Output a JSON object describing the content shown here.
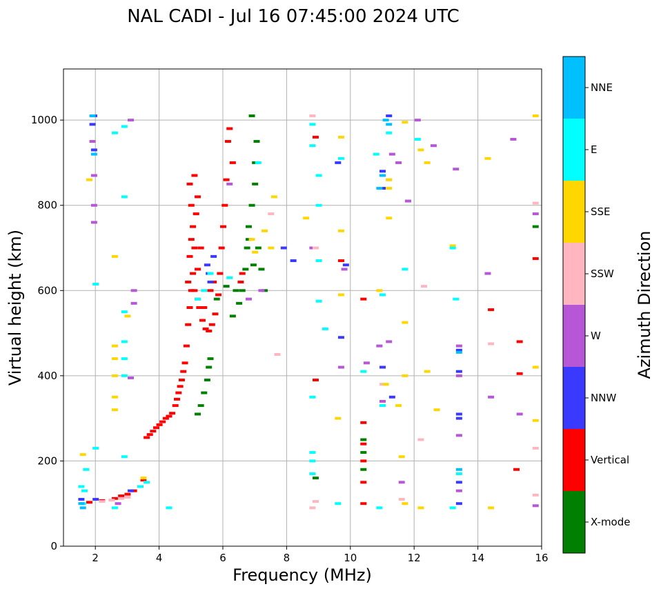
{
  "chart_data": {
    "type": "scatter",
    "title": "NAL CADI - Jul 16 07:45:00 2024 UTC",
    "xlabel": "Frequency (MHz)",
    "ylabel": "Virtual height (km)",
    "xlim": [
      1,
      16
    ],
    "ylim": [
      0,
      1120
    ],
    "xticks": [
      2,
      4,
      6,
      8,
      10,
      12,
      14,
      16
    ],
    "yticks": [
      0,
      200,
      400,
      600,
      800,
      1000
    ],
    "grid": true,
    "colorbar": {
      "label": "Azimuth Direction",
      "categories": [
        {
          "name": "X-mode",
          "color": "#008000"
        },
        {
          "name": "Vertical",
          "color": "#ff0000"
        },
        {
          "name": "NNW",
          "color": "#3a3aff"
        },
        {
          "name": "W",
          "color": "#b657d6"
        },
        {
          "name": "SSW",
          "color": "#ffb6c1"
        },
        {
          "name": "SSE",
          "color": "#ffd700"
        },
        {
          "name": "E",
          "color": "#00ffff"
        },
        {
          "name": "NNE",
          "color": "#00bfff"
        }
      ]
    },
    "series": [
      {
        "name": "Vertical",
        "points": [
          [
            1.8,
            103
          ],
          [
            2.2,
            107
          ],
          [
            2.6,
            112
          ],
          [
            2.8,
            118
          ],
          [
            3.0,
            122
          ],
          [
            3.2,
            130
          ],
          [
            3.4,
            140
          ],
          [
            3.5,
            155
          ],
          [
            3.6,
            255
          ],
          [
            3.7,
            262
          ],
          [
            3.8,
            270
          ],
          [
            3.9,
            278
          ],
          [
            4.0,
            285
          ],
          [
            4.1,
            292
          ],
          [
            4.2,
            300
          ],
          [
            4.3,
            305
          ],
          [
            4.4,
            312
          ],
          [
            4.5,
            330
          ],
          [
            4.55,
            345
          ],
          [
            4.6,
            360
          ],
          [
            4.65,
            375
          ],
          [
            4.7,
            390
          ],
          [
            4.75,
            410
          ],
          [
            4.8,
            430
          ],
          [
            4.85,
            470
          ],
          [
            4.9,
            520
          ],
          [
            4.95,
            560
          ],
          [
            5.0,
            600
          ],
          [
            5.05,
            640
          ],
          [
            5.1,
            700
          ],
          [
            5.05,
            750
          ],
          [
            5.0,
            800
          ],
          [
            4.95,
            850
          ],
          [
            5.1,
            870
          ],
          [
            5.2,
            820
          ],
          [
            5.3,
            700
          ],
          [
            5.2,
            650
          ],
          [
            5.25,
            560
          ],
          [
            5.35,
            530
          ],
          [
            5.45,
            510
          ],
          [
            5.55,
            505
          ],
          [
            5.65,
            520
          ],
          [
            5.75,
            545
          ],
          [
            5.85,
            590
          ],
          [
            5.9,
            640
          ],
          [
            5.95,
            700
          ],
          [
            6.0,
            750
          ],
          [
            6.05,
            800
          ],
          [
            6.1,
            860
          ],
          [
            6.15,
            950
          ],
          [
            6.2,
            980
          ],
          [
            6.3,
            900
          ],
          [
            5.1,
            600
          ],
          [
            5.2,
            580
          ],
          [
            5.4,
            560
          ],
          [
            5.6,
            600
          ],
          [
            5.7,
            620
          ],
          [
            4.9,
            620
          ],
          [
            4.95,
            680
          ],
          [
            5.0,
            720
          ],
          [
            5.15,
            780
          ],
          [
            10.4,
            100
          ],
          [
            10.4,
            150
          ],
          [
            10.4,
            200
          ],
          [
            10.4,
            240
          ],
          [
            10.4,
            290
          ],
          [
            10.4,
            580
          ],
          [
            15.2,
            180
          ],
          [
            15.3,
            405
          ],
          [
            15.3,
            480
          ],
          [
            15.8,
            675
          ],
          [
            14.4,
            555
          ],
          [
            8.9,
            390
          ],
          [
            8.9,
            960
          ],
          [
            9.7,
            670
          ],
          [
            6.55,
            620
          ],
          [
            6.6,
            640
          ]
        ]
      },
      {
        "name": "X-mode",
        "points": [
          [
            5.2,
            310
          ],
          [
            5.3,
            330
          ],
          [
            5.4,
            360
          ],
          [
            5.5,
            390
          ],
          [
            5.55,
            420
          ],
          [
            5.6,
            440
          ],
          [
            6.3,
            540
          ],
          [
            6.5,
            570
          ],
          [
            6.6,
            600
          ],
          [
            6.7,
            650
          ],
          [
            6.75,
            700
          ],
          [
            6.8,
            750
          ],
          [
            6.9,
            800
          ],
          [
            7.0,
            850
          ],
          [
            7.0,
            900
          ],
          [
            7.05,
            950
          ],
          [
            6.9,
            1010
          ],
          [
            7.1,
            700
          ],
          [
            7.2,
            650
          ],
          [
            7.3,
            600
          ],
          [
            6.8,
            720
          ],
          [
            6.95,
            660
          ],
          [
            10.4,
            180
          ],
          [
            10.4,
            220
          ],
          [
            10.4,
            250
          ],
          [
            15.8,
            750
          ],
          [
            8.9,
            160
          ],
          [
            5.8,
            580
          ],
          [
            6.1,
            610
          ],
          [
            6.4,
            600
          ]
        ]
      },
      {
        "name": "NNW",
        "points": [
          [
            1.95,
            1010
          ],
          [
            1.9,
            990
          ],
          [
            1.95,
            930
          ],
          [
            1.55,
            110
          ],
          [
            2.0,
            110
          ],
          [
            3.1,
            130
          ],
          [
            5.5,
            660
          ],
          [
            5.55,
            640
          ],
          [
            5.6,
            620
          ],
          [
            5.7,
            680
          ],
          [
            11.0,
            840
          ],
          [
            11.0,
            880
          ],
          [
            11.2,
            1010
          ],
          [
            11.3,
            350
          ],
          [
            11.0,
            420
          ],
          [
            13.4,
            310
          ],
          [
            13.4,
            150
          ],
          [
            13.4,
            100
          ],
          [
            13.4,
            460
          ],
          [
            13.4,
            410
          ],
          [
            13.4,
            300
          ],
          [
            9.6,
            900
          ],
          [
            9.7,
            490
          ],
          [
            9.85,
            660
          ],
          [
            7.9,
            700
          ],
          [
            8.2,
            670
          ]
        ]
      },
      {
        "name": "W",
        "points": [
          [
            1.95,
            870
          ],
          [
            1.95,
            800
          ],
          [
            1.95,
            760
          ],
          [
            1.9,
            950
          ],
          [
            3.1,
            1000
          ],
          [
            3.2,
            600
          ],
          [
            3.2,
            570
          ],
          [
            3.1,
            395
          ],
          [
            2.7,
            100
          ],
          [
            11.3,
            920
          ],
          [
            11.5,
            900
          ],
          [
            11.8,
            810
          ],
          [
            12.1,
            1000
          ],
          [
            12.6,
            940
          ],
          [
            13.3,
            885
          ],
          [
            13.4,
            470
          ],
          [
            13.4,
            400
          ],
          [
            13.4,
            260
          ],
          [
            13.4,
            130
          ],
          [
            14.3,
            640
          ],
          [
            14.4,
            350
          ],
          [
            15.1,
            955
          ],
          [
            15.3,
            310
          ],
          [
            15.8,
            780
          ],
          [
            15.8,
            95
          ],
          [
            10.5,
            430
          ],
          [
            10.9,
            470
          ],
          [
            11.2,
            480
          ],
          [
            11.6,
            150
          ],
          [
            11.0,
            340
          ],
          [
            8.8,
            700
          ],
          [
            9.7,
            420
          ],
          [
            9.8,
            650
          ],
          [
            6.2,
            850
          ],
          [
            6.8,
            580
          ],
          [
            7.2,
            600
          ]
        ]
      },
      {
        "name": "SSW",
        "points": [
          [
            2.2,
            105
          ],
          [
            2.5,
            108
          ],
          [
            2.8,
            112
          ],
          [
            3.0,
            115
          ],
          [
            8.8,
            90
          ],
          [
            8.9,
            105
          ],
          [
            8.9,
            700
          ],
          [
            11.2,
            860
          ],
          [
            11.0,
            380
          ],
          [
            11.6,
            110
          ],
          [
            12.2,
            250
          ],
          [
            12.3,
            610
          ],
          [
            14.4,
            475
          ],
          [
            15.8,
            230
          ],
          [
            15.8,
            120
          ],
          [
            15.8,
            805
          ],
          [
            7.5,
            780
          ],
          [
            7.7,
            450
          ],
          [
            8.8,
            1010
          ]
        ]
      },
      {
        "name": "SSE",
        "points": [
          [
            1.6,
            215
          ],
          [
            1.8,
            860
          ],
          [
            2.6,
            680
          ],
          [
            2.6,
            470
          ],
          [
            2.6,
            440
          ],
          [
            2.6,
            400
          ],
          [
            2.6,
            350
          ],
          [
            2.6,
            320
          ],
          [
            3.0,
            540
          ],
          [
            3.5,
            160
          ],
          [
            6.9,
            720
          ],
          [
            7.0,
            690
          ],
          [
            7.3,
            740
          ],
          [
            7.5,
            700
          ],
          [
            7.6,
            820
          ],
          [
            8.6,
            770
          ],
          [
            9.7,
            960
          ],
          [
            9.7,
            740
          ],
          [
            9.7,
            590
          ],
          [
            9.6,
            300
          ],
          [
            11.2,
            770
          ],
          [
            11.2,
            860
          ],
          [
            11.2,
            840
          ],
          [
            11.1,
            380
          ],
          [
            11.5,
            330
          ],
          [
            11.6,
            210
          ],
          [
            11.7,
            400
          ],
          [
            11.7,
            525
          ],
          [
            11.7,
            995
          ],
          [
            12.2,
            930
          ],
          [
            12.4,
            900
          ],
          [
            12.4,
            410
          ],
          [
            12.7,
            320
          ],
          [
            13.2,
            705
          ],
          [
            14.3,
            910
          ],
          [
            14.4,
            90
          ],
          [
            15.8,
            1010
          ],
          [
            15.8,
            420
          ],
          [
            15.8,
            295
          ],
          [
            12.2,
            90
          ],
          [
            11.7,
            100
          ],
          [
            10.9,
            600
          ]
        ]
      },
      {
        "name": "E",
        "points": [
          [
            1.55,
            140
          ],
          [
            1.6,
            100
          ],
          [
            1.65,
            130
          ],
          [
            1.7,
            180
          ],
          [
            2.0,
            615
          ],
          [
            2.0,
            230
          ],
          [
            2.6,
            970
          ],
          [
            2.9,
            985
          ],
          [
            2.9,
            820
          ],
          [
            2.9,
            550
          ],
          [
            2.9,
            480
          ],
          [
            2.9,
            440
          ],
          [
            2.9,
            400
          ],
          [
            2.9,
            210
          ],
          [
            2.6,
            90
          ],
          [
            3.4,
            140
          ],
          [
            3.6,
            150
          ],
          [
            4.3,
            90
          ],
          [
            5.2,
            580
          ],
          [
            5.4,
            600
          ],
          [
            5.6,
            640
          ],
          [
            6.2,
            630
          ],
          [
            7.1,
            900
          ],
          [
            8.8,
            220
          ],
          [
            8.8,
            200
          ],
          [
            8.8,
            170
          ],
          [
            8.8,
            350
          ],
          [
            8.8,
            990
          ],
          [
            8.8,
            940
          ],
          [
            9.0,
            870
          ],
          [
            9.0,
            800
          ],
          [
            9.0,
            670
          ],
          [
            9.0,
            575
          ],
          [
            9.2,
            510
          ],
          [
            9.7,
            910
          ],
          [
            10.4,
            410
          ],
          [
            10.8,
            920
          ],
          [
            11.0,
            330
          ],
          [
            11.0,
            590
          ],
          [
            11.2,
            970
          ],
          [
            11.7,
            650
          ],
          [
            12.1,
            955
          ],
          [
            13.2,
            700
          ],
          [
            13.3,
            580
          ],
          [
            13.2,
            90
          ],
          [
            13.4,
            170
          ],
          [
            9.6,
            100
          ],
          [
            10.9,
            90
          ]
        ]
      },
      {
        "name": "NNE",
        "points": [
          [
            1.55,
            100
          ],
          [
            1.6,
            90
          ],
          [
            1.9,
            1010
          ],
          [
            1.95,
            920
          ],
          [
            11.1,
            1000
          ],
          [
            11.2,
            990
          ],
          [
            13.4,
            180
          ],
          [
            13.4,
            455
          ],
          [
            10.9,
            840
          ],
          [
            11.0,
            870
          ]
        ]
      }
    ]
  }
}
